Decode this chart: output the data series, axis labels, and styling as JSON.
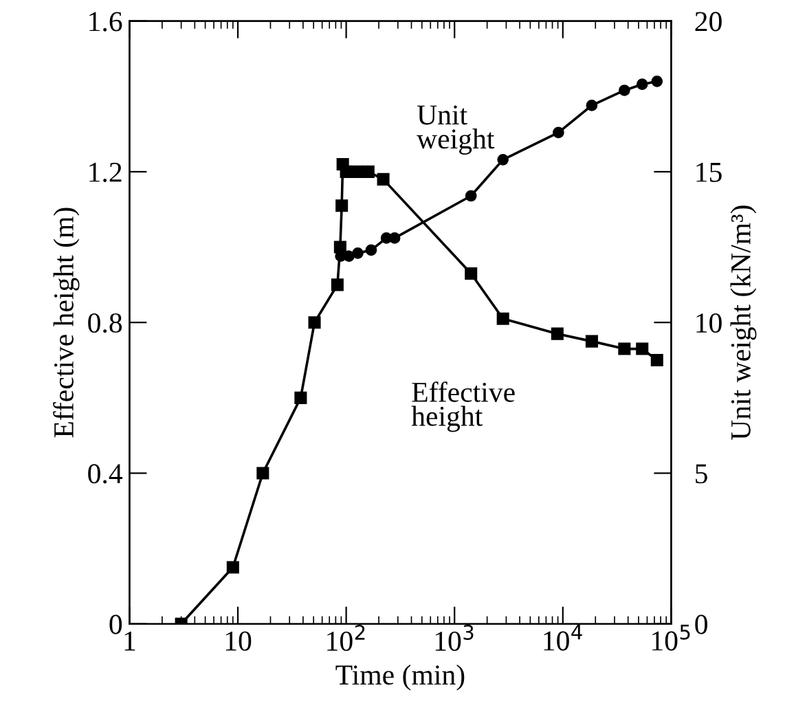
{
  "chart_data": {
    "type": "line",
    "xlabel": "Time (min)",
    "ylabel": "Effective height (m)",
    "y2label": "Unit weight (kN/m³)",
    "log": "x",
    "xlim": [
      1,
      100000
    ],
    "xticks": [
      1,
      10,
      {
        "value": 100,
        "label": "10$^{2}$"
      },
      {
        "value": 1000,
        "label": "10$^{3}$"
      },
      {
        "value": 10000,
        "label": "10$^{4}$"
      },
      {
        "value": 100000,
        "label": "10$^{5}$"
      }
    ],
    "ylim": [
      0,
      1.6
    ],
    "yticks": [
      0,
      0.4,
      0.8,
      1.2,
      1.6
    ],
    "y2lim": [
      0,
      20
    ],
    "y2ticks": [
      0,
      5,
      10,
      15,
      20
    ],
    "grid": false,
    "legend": false,
    "series": [
      {
        "name": "Effective height",
        "color": "#000000",
        "marker": "square",
        "x": [
          3,
          9,
          17,
          38,
          51,
          83,
          88,
          91,
          93,
          100,
          125,
          160,
          220,
          1420,
          2800,
          8900,
          18500,
          37000,
          54000,
          74000
        ],
        "values": [
          0,
          0.15,
          0.4,
          0.6,
          0.8,
          0.9,
          1.0,
          1.11,
          1.22,
          1.2,
          1.2,
          1.2,
          1.18,
          0.93,
          0.81,
          0.77,
          0.75,
          0.73,
          0.73,
          0.7
        ]
      },
      {
        "name": "Unit weight",
        "color": "#000000",
        "marker": "circle",
        "axis": "y2",
        "x": [
          89,
          106,
          128,
          170,
          235,
          280,
          1420,
          2800,
          9100,
          18500,
          37000,
          54000,
          74000
        ],
        "values": [
          12.2,
          12.2,
          12.3,
          12.4,
          12.8,
          12.8,
          14.2,
          15.4,
          16.3,
          17.2,
          17.7,
          17.9,
          18.0
        ]
      }
    ]
  }
}
